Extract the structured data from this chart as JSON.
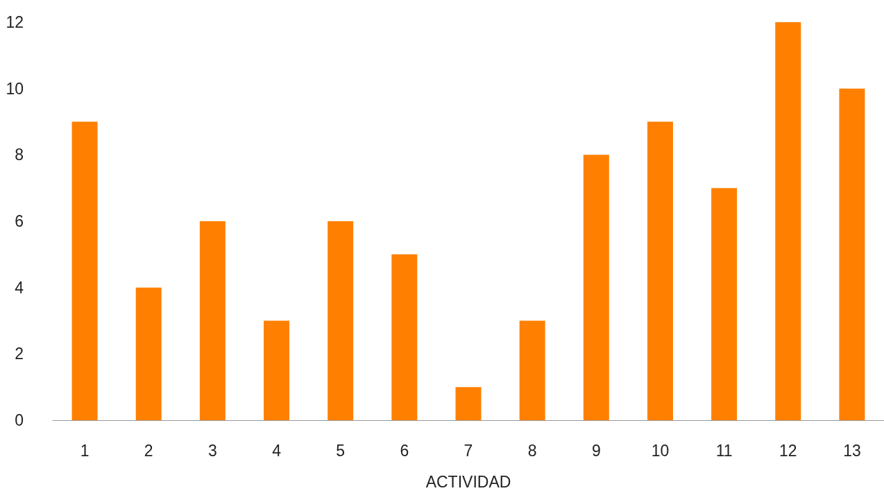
{
  "chart_data": {
    "type": "bar",
    "xlabel": "ACTIVIDAD",
    "categories": [
      "1",
      "2",
      "3",
      "4",
      "5",
      "6",
      "7",
      "8",
      "9",
      "10",
      "11",
      "12",
      "13"
    ],
    "values": [
      9,
      4,
      6,
      3,
      6,
      5,
      1,
      3,
      8,
      9,
      7,
      12,
      10
    ],
    "color": "#ff8000",
    "ylim": [
      0,
      12
    ],
    "yticks": [
      0,
      2,
      4,
      6,
      8,
      10,
      12
    ],
    "grid": false
  }
}
